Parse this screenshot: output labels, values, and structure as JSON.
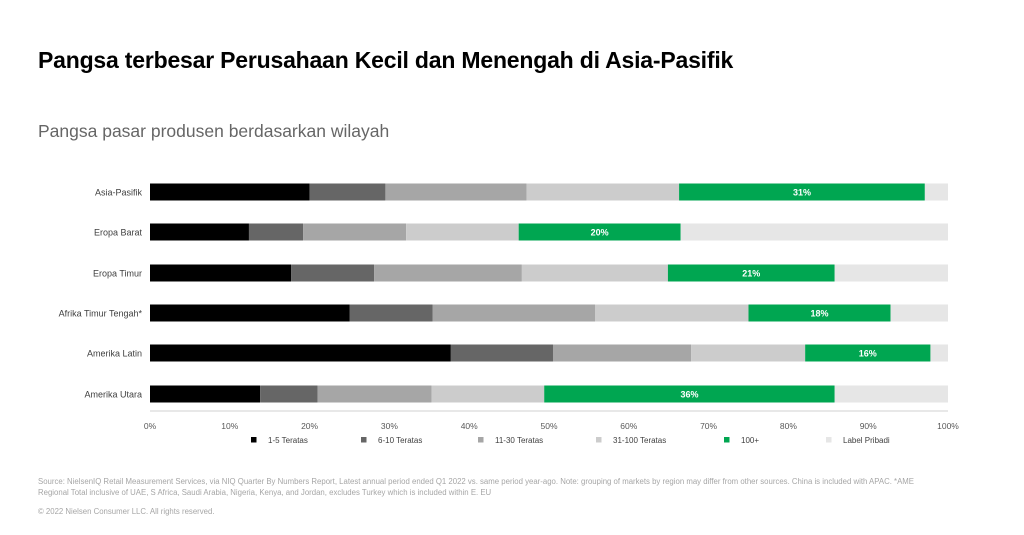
{
  "title": "Pangsa terbesar Perusahaan Kecil dan Menengah di Asia-Pasifik",
  "subtitle": "Pangsa pasar produsen berdasarkan wilayah",
  "footer": {
    "source": "Source: NielsenIQ Retail Measurement Services, via NIQ Quarter By Numbers Report, Latest annual period ended Q1 2022 vs. same period year-ago. Note: grouping of markets by region may differ from other sources. China is included with APAC. *AME Regional Total inclusive of UAE, S Africa, Saudi Arabia, Nigeria, Kenya, and Jordan, excludes Turkey which is included within E. EU",
    "copyright": "© 2022 Nielsen Consumer LLC. All rights reserved."
  },
  "colors": {
    "1-5 Teratas": "#000000",
    "6-10 Teratas": "#666666",
    "11-30 Teratas": "#a6a6a6",
    "31-100 Teratas": "#cccccc",
    "100+": "#00a651",
    "Label Pribadi": "#e6e6e6"
  },
  "chart_data": {
    "type": "bar",
    "orientation": "horizontal",
    "stacked": true,
    "title": "Pangsa pasar produsen berdasarkan wilayah",
    "categories": [
      "Asia-Pasifik",
      "Eropa Barat",
      "Eropa Timur",
      "Afrika Timur Tengah*",
      "Amerika Latin",
      "Amerika Utara"
    ],
    "series": [
      {
        "name": "1-5 Teratas",
        "values": [
          20,
          12.4,
          17.7,
          25,
          37.7,
          13.8
        ]
      },
      {
        "name": "6-10 Teratas",
        "values": [
          9.5,
          6.8,
          10.4,
          10.4,
          12.8,
          7.2
        ]
      },
      {
        "name": "11-30 Teratas",
        "values": [
          17.7,
          12.9,
          18.5,
          20.4,
          17.3,
          14.3
        ]
      },
      {
        "name": "31-100 Teratas",
        "values": [
          19.1,
          14.1,
          18.3,
          19.2,
          14.3,
          14.1
        ]
      },
      {
        "name": "100+",
        "values": [
          30.8,
          20.3,
          20.9,
          17.8,
          15.7,
          36.4
        ]
      },
      {
        "name": "Label Pribadi",
        "values": [
          2.9,
          33.5,
          14.2,
          7.2,
          2.2,
          14.2
        ]
      }
    ],
    "data_labels": {
      "series": "100+",
      "labels": [
        "31%",
        "20%",
        "21%",
        "18%",
        "16%",
        "36%"
      ]
    },
    "xlim": [
      0,
      100
    ],
    "xticks": [
      "0%",
      "10%",
      "20%",
      "30%",
      "40%",
      "50%",
      "60%",
      "70%",
      "80%",
      "90%",
      "100%"
    ],
    "legend_position": "bottom",
    "grid": false
  }
}
